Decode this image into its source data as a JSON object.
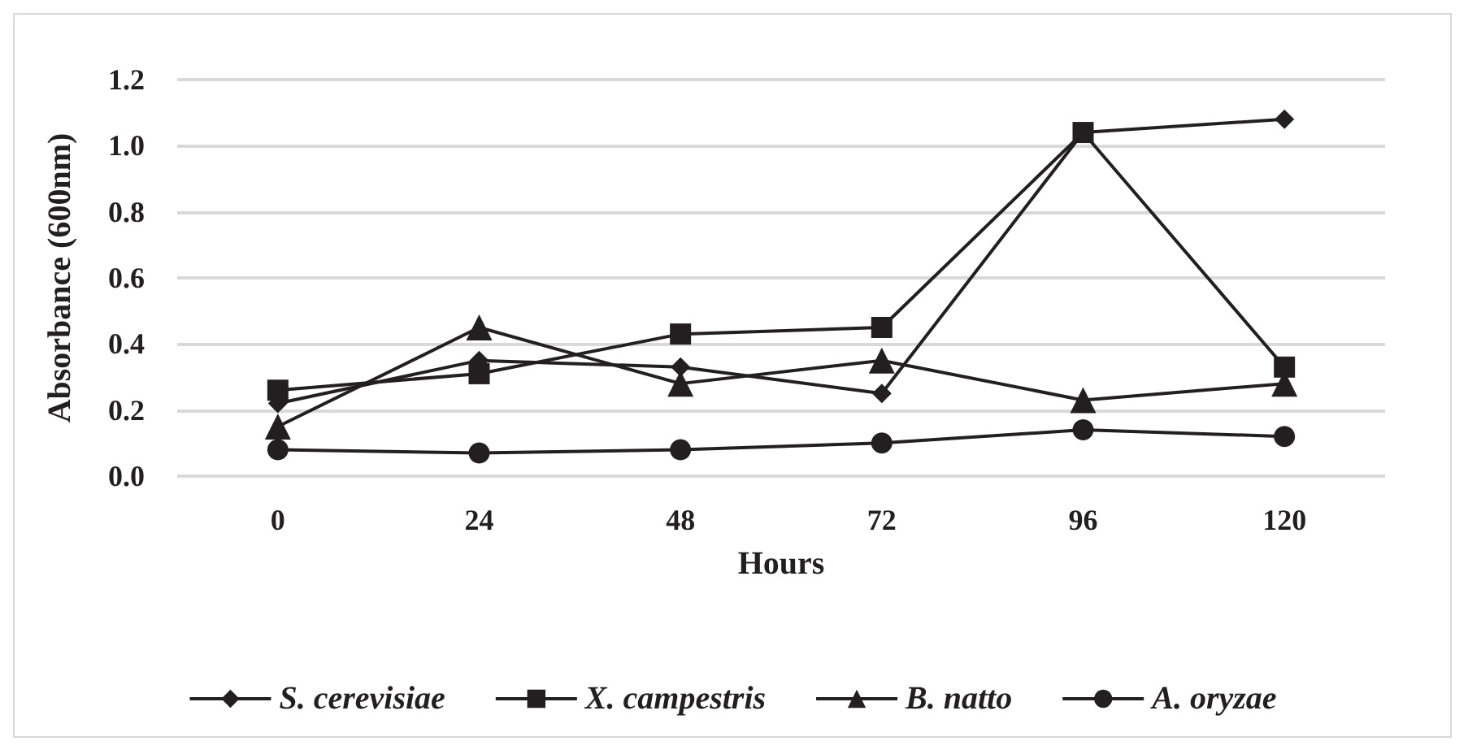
{
  "chart_data": {
    "type": "line",
    "xlabel": "Hours",
    "ylabel": "Absorbance (600nm)",
    "categories": [
      "0",
      "24",
      "48",
      "72",
      "96",
      "120"
    ],
    "series": [
      {
        "name": "S. cerevisiae",
        "color": "#231f20",
        "marker": "diamond",
        "values": [
          0.22,
          0.35,
          0.33,
          0.25,
          1.04,
          1.08
        ]
      },
      {
        "name": "X. campestris",
        "color": "#231f20",
        "marker": "square",
        "values": [
          0.26,
          0.31,
          0.43,
          0.45,
          1.04,
          0.33
        ]
      },
      {
        "name": "B. natto",
        "color": "#231f20",
        "marker": "triangle",
        "values": [
          0.15,
          0.45,
          0.28,
          0.35,
          0.23,
          0.28
        ]
      },
      {
        "name": "A. oryzae",
        "color": "#231f20",
        "marker": "circle",
        "values": [
          0.08,
          0.07,
          0.08,
          0.1,
          0.14,
          0.12
        ]
      }
    ],
    "ylim": [
      0,
      1.2
    ],
    "yticks": [
      {
        "value": 0,
        "label": "0.0"
      },
      {
        "value": 0.2,
        "label": "0.2"
      },
      {
        "value": 0.4,
        "label": "0.4"
      },
      {
        "value": 0.6,
        "label": "0.6"
      },
      {
        "value": 0.8,
        "label": "0.8"
      },
      {
        "value": 1.0,
        "label": "1.0"
      },
      {
        "value": 1.2,
        "label": "1.2"
      }
    ],
    "grid": "y",
    "legend": "bottom",
    "line_style": "solid"
  }
}
